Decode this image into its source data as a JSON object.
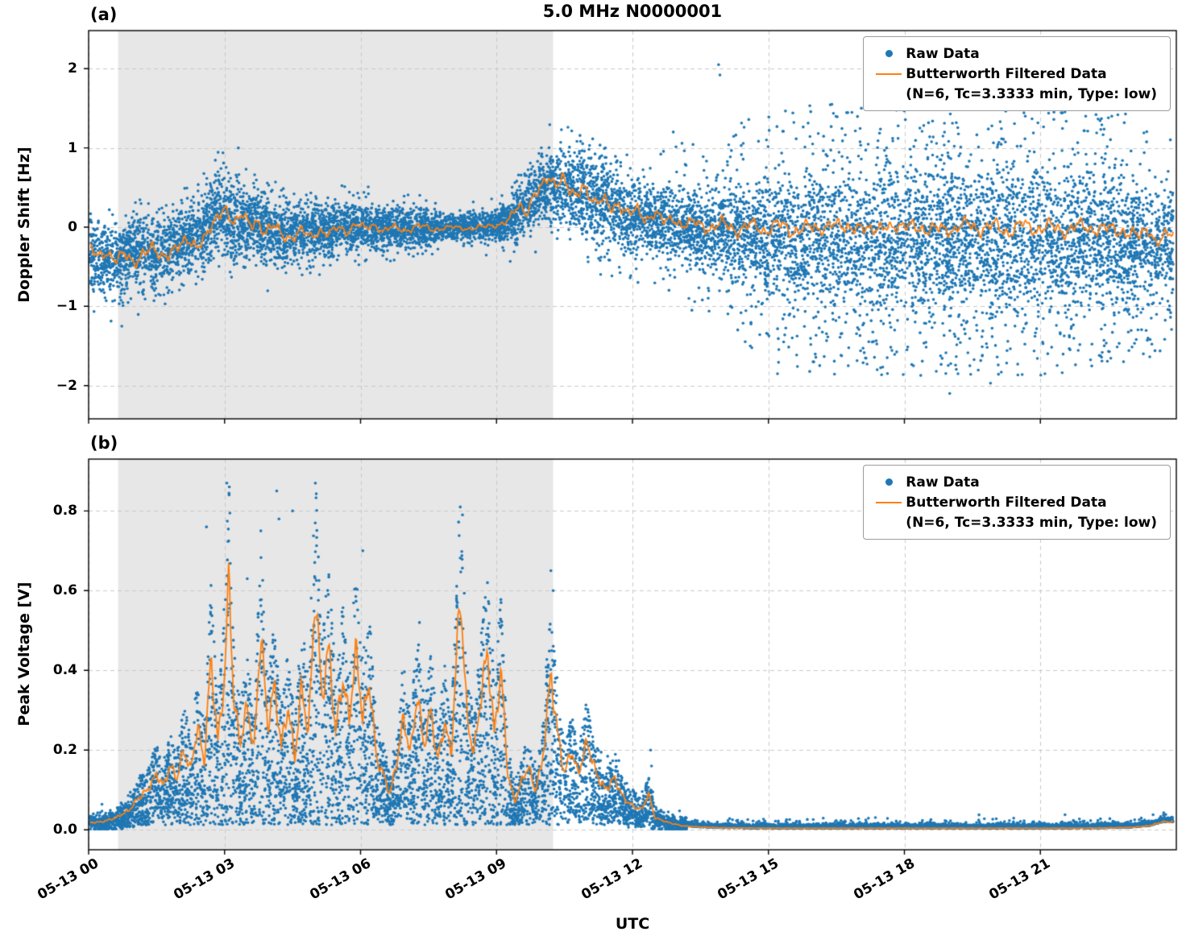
{
  "figure": {
    "title": "5.0 MHz N0000001",
    "xlabel": "UTC"
  },
  "legend": {
    "raw_label": "Raw Data",
    "filtered_label": "Butterworth Filtered Data",
    "filtered_sublabel": "(N=6, Tc=3.3333 min, Type: low)"
  },
  "colors": {
    "raw": "#1f77b4",
    "filtered": "#ff7f0e",
    "shaded_region": "#e7e7e7",
    "grid": "#c9c9c9",
    "spine": "#000000"
  },
  "chart_data": [
    {
      "type": "scatter",
      "panel_label": "(a)",
      "ylabel": "Doppler Shift [Hz]",
      "ylim": [
        -2.42,
        2.48
      ],
      "yticks": [
        -2,
        -1,
        0,
        1,
        2
      ],
      "xlim_hours": [
        0,
        24
      ],
      "xtick_hours": [
        0,
        3,
        6,
        9,
        12,
        15,
        18,
        21
      ],
      "xtick_labels": [
        "05-13 00",
        "05-13 03",
        "05-13 06",
        "05-13 09",
        "05-13 12",
        "05-13 15",
        "05-13 18",
        "05-13 21"
      ],
      "shaded_hours": [
        0.65,
        10.25
      ],
      "grid": "dashed",
      "legend_position": "upper right",
      "series": [
        {
          "name": "Raw Data",
          "type": "scatter",
          "color": "#1f77b4"
        },
        {
          "name": "Butterworth Filtered Data (N=6, Tc=3.3333 min, Type: low)",
          "type": "line",
          "color": "#ff7f0e"
        }
      ],
      "filtered_keyframes": [
        [
          0.0,
          -0.25
        ],
        [
          0.2,
          -0.38
        ],
        [
          0.4,
          -0.3
        ],
        [
          0.6,
          -0.42
        ],
        [
          0.8,
          -0.35
        ],
        [
          1.0,
          -0.45
        ],
        [
          1.2,
          -0.32
        ],
        [
          1.4,
          -0.28
        ],
        [
          1.6,
          -0.38
        ],
        [
          1.8,
          -0.3
        ],
        [
          2.0,
          -0.25
        ],
        [
          2.2,
          -0.18
        ],
        [
          2.4,
          -0.22
        ],
        [
          2.6,
          -0.1
        ],
        [
          2.8,
          0.05
        ],
        [
          3.0,
          0.28
        ],
        [
          3.1,
          0.15
        ],
        [
          3.25,
          0.05
        ],
        [
          3.4,
          0.15
        ],
        [
          3.55,
          0.02
        ],
        [
          3.7,
          0.1
        ],
        [
          3.9,
          -0.08
        ],
        [
          4.1,
          0.02
        ],
        [
          4.3,
          -0.1
        ],
        [
          4.5,
          -0.14
        ],
        [
          4.7,
          -0.05
        ],
        [
          4.9,
          -0.12
        ],
        [
          5.1,
          -0.04
        ],
        [
          5.3,
          -0.1
        ],
        [
          5.5,
          0.0
        ],
        [
          5.7,
          -0.06
        ],
        [
          5.9,
          0.04
        ],
        [
          6.1,
          -0.02
        ],
        [
          6.3,
          0.03
        ],
        [
          6.5,
          -0.05
        ],
        [
          6.7,
          0.0
        ],
        [
          7.0,
          -0.04
        ],
        [
          7.3,
          0.02
        ],
        [
          7.6,
          -0.03
        ],
        [
          8.0,
          0.0
        ],
        [
          8.4,
          -0.02
        ],
        [
          8.8,
          0.01
        ],
        [
          9.1,
          0.04
        ],
        [
          9.3,
          0.1
        ],
        [
          9.5,
          0.28
        ],
        [
          9.65,
          0.18
        ],
        [
          9.8,
          0.38
        ],
        [
          10.0,
          0.5
        ],
        [
          10.15,
          0.62
        ],
        [
          10.3,
          0.55
        ],
        [
          10.45,
          0.65
        ],
        [
          10.6,
          0.45
        ],
        [
          10.75,
          0.35
        ],
        [
          10.9,
          0.55
        ],
        [
          11.05,
          0.42
        ],
        [
          11.2,
          0.28
        ],
        [
          11.35,
          0.35
        ],
        [
          11.5,
          0.25
        ],
        [
          11.7,
          0.3
        ],
        [
          11.9,
          0.15
        ],
        [
          12.1,
          0.22
        ],
        [
          12.3,
          0.1
        ],
        [
          12.5,
          0.18
        ],
        [
          12.7,
          0.06
        ],
        [
          12.9,
          0.12
        ],
        [
          13.1,
          0.02
        ],
        [
          13.4,
          0.06
        ],
        [
          13.7,
          -0.02
        ],
        [
          14.0,
          0.05
        ],
        [
          14.3,
          -0.05
        ],
        [
          14.6,
          0.04
        ],
        [
          14.9,
          -0.06
        ],
        [
          15.2,
          0.06
        ],
        [
          15.5,
          -0.08
        ],
        [
          15.8,
          0.03
        ],
        [
          16.1,
          -0.06
        ],
        [
          16.4,
          0.08
        ],
        [
          16.7,
          -0.05
        ],
        [
          17.0,
          0.04
        ],
        [
          17.3,
          -0.08
        ],
        [
          17.6,
          0.05
        ],
        [
          17.9,
          -0.04
        ],
        [
          18.2,
          0.06
        ],
        [
          18.5,
          -0.08
        ],
        [
          18.8,
          0.02
        ],
        [
          19.1,
          -0.06
        ],
        [
          19.4,
          0.07
        ],
        [
          19.7,
          -0.05
        ],
        [
          20.0,
          0.04
        ],
        [
          20.3,
          -0.08
        ],
        [
          20.6,
          0.05
        ],
        [
          20.9,
          -0.04
        ],
        [
          21.2,
          0.03
        ],
        [
          21.5,
          -0.07
        ],
        [
          21.8,
          0.04
        ],
        [
          22.1,
          -0.05
        ],
        [
          22.4,
          0.02
        ],
        [
          22.7,
          -0.08
        ],
        [
          23.0,
          -0.04
        ],
        [
          23.2,
          -0.12
        ],
        [
          23.4,
          -0.05
        ],
        [
          23.55,
          -0.18
        ],
        [
          23.7,
          -0.1
        ]
      ],
      "raw_envelope": [
        [
          0.0,
          -0.35,
          0.22,
          0.02,
          0.5
        ],
        [
          0.5,
          -0.45,
          0.22,
          0.02,
          0.5
        ],
        [
          1.0,
          -0.3,
          0.23,
          0.02,
          0.5
        ],
        [
          1.5,
          -0.35,
          0.25,
          0.02,
          0.5
        ],
        [
          2.0,
          -0.2,
          0.25,
          0.02,
          0.5
        ],
        [
          2.5,
          -0.1,
          0.22,
          0.02,
          0.5
        ],
        [
          2.9,
          0.2,
          0.25,
          0.03,
          0.5
        ],
        [
          3.2,
          0.05,
          0.25,
          0.03,
          0.5
        ],
        [
          3.6,
          0.05,
          0.24,
          0.02,
          0.4
        ],
        [
          4.0,
          -0.05,
          0.22,
          0.02,
          0.4
        ],
        [
          4.5,
          -0.1,
          0.2,
          0.02,
          0.4
        ],
        [
          5.0,
          -0.05,
          0.18,
          0.02,
          0.4
        ],
        [
          5.5,
          0.0,
          0.16,
          0.02,
          0.35
        ],
        [
          6.0,
          0.02,
          0.15,
          0.02,
          0.35
        ],
        [
          6.5,
          -0.02,
          0.13,
          0.02,
          0.3
        ],
        [
          7.0,
          0.0,
          0.13,
          0.01,
          0.3
        ],
        [
          7.5,
          -0.02,
          0.12,
          0.01,
          0.3
        ],
        [
          8.0,
          0.0,
          0.07,
          0.01,
          0.25
        ],
        [
          8.5,
          0.0,
          0.09,
          0.01,
          0.25
        ],
        [
          9.0,
          0.02,
          0.1,
          0.01,
          0.3
        ],
        [
          9.4,
          0.15,
          0.18,
          0.02,
          0.4
        ],
        [
          9.8,
          0.4,
          0.2,
          0.03,
          0.5
        ],
        [
          10.2,
          0.55,
          0.22,
          0.04,
          0.5
        ],
        [
          10.6,
          0.45,
          0.26,
          0.05,
          0.5
        ],
        [
          11.0,
          0.45,
          0.28,
          0.05,
          0.5
        ],
        [
          11.4,
          0.3,
          0.28,
          0.05,
          0.5
        ],
        [
          11.8,
          0.15,
          0.25,
          0.05,
          0.5
        ],
        [
          12.2,
          0.15,
          0.22,
          0.06,
          0.6
        ],
        [
          12.6,
          0.05,
          0.2,
          0.08,
          0.7
        ],
        [
          13.0,
          0.0,
          0.2,
          0.1,
          0.8
        ],
        [
          13.5,
          -0.02,
          0.22,
          0.12,
          0.9
        ],
        [
          14.0,
          -0.05,
          0.25,
          0.15,
          1.0
        ],
        [
          14.5,
          -0.08,
          0.28,
          0.18,
          1.1
        ],
        [
          15.0,
          -0.1,
          0.32,
          0.22,
          1.2
        ],
        [
          16.0,
          -0.12,
          0.36,
          0.25,
          1.3
        ],
        [
          17.0,
          -0.12,
          0.38,
          0.27,
          1.3
        ],
        [
          18.0,
          -0.15,
          0.38,
          0.27,
          1.3
        ],
        [
          19.0,
          -0.12,
          0.38,
          0.28,
          1.35
        ],
        [
          20.0,
          -0.15,
          0.38,
          0.28,
          1.3
        ],
        [
          21.0,
          -0.12,
          0.38,
          0.27,
          1.3
        ],
        [
          22.0,
          -0.12,
          0.36,
          0.25,
          1.25
        ],
        [
          23.0,
          -0.15,
          0.34,
          0.22,
          1.2
        ],
        [
          23.7,
          -0.2,
          0.3,
          0.18,
          1.0
        ]
      ],
      "raw_outliers": [
        [
          13.9,
          2.05
        ],
        [
          13.93,
          1.92
        ],
        [
          12.9,
          1.2
        ],
        [
          16.4,
          1.55
        ],
        [
          17.05,
          1.5
        ],
        [
          19.3,
          1.55
        ],
        [
          20.6,
          1.5
        ],
        [
          21.3,
          1.45
        ],
        [
          22.0,
          1.4
        ],
        [
          15.2,
          -1.85
        ],
        [
          17.4,
          -1.8
        ],
        [
          19.0,
          -2.1
        ],
        [
          19.9,
          -1.97
        ],
        [
          21.1,
          -1.85
        ],
        [
          18.2,
          -1.75
        ],
        [
          22.3,
          -1.62
        ],
        [
          14.6,
          -1.5
        ],
        [
          16.0,
          -1.7
        ]
      ]
    },
    {
      "type": "scatter",
      "panel_label": "(b)",
      "ylabel": "Peak Voltage [V]",
      "ylim": [
        -0.05,
        0.93
      ],
      "yticks": [
        0.0,
        0.2,
        0.4,
        0.6,
        0.8
      ],
      "xlim_hours": [
        0,
        24
      ],
      "xtick_hours": [
        0,
        3,
        6,
        9,
        12,
        15,
        18,
        21
      ],
      "xtick_labels": [
        "05-13 00",
        "05-13 03",
        "05-13 06",
        "05-13 09",
        "05-13 12",
        "05-13 15",
        "05-13 18",
        "05-13 21"
      ],
      "shaded_hours": [
        0.65,
        10.25
      ],
      "grid": "dashed",
      "legend_position": "upper right",
      "series": [
        {
          "name": "Raw Data",
          "type": "scatter",
          "color": "#1f77b4"
        },
        {
          "name": "Butterworth Filtered Data (N=6, Tc=3.3333 min, Type: low)",
          "type": "line",
          "color": "#ff7f0e"
        }
      ],
      "filtered_keyframes": [
        [
          0.0,
          0.018
        ],
        [
          0.3,
          0.02
        ],
        [
          0.6,
          0.03
        ],
        [
          0.9,
          0.05
        ],
        [
          1.1,
          0.08
        ],
        [
          1.3,
          0.1
        ],
        [
          1.5,
          0.14
        ],
        [
          1.65,
          0.11
        ],
        [
          1.8,
          0.16
        ],
        [
          1.95,
          0.13
        ],
        [
          2.1,
          0.2
        ],
        [
          2.25,
          0.15
        ],
        [
          2.4,
          0.26
        ],
        [
          2.55,
          0.17
        ],
        [
          2.7,
          0.43
        ],
        [
          2.85,
          0.22
        ],
        [
          3.0,
          0.38
        ],
        [
          3.1,
          0.65
        ],
        [
          3.2,
          0.32
        ],
        [
          3.35,
          0.22
        ],
        [
          3.5,
          0.31
        ],
        [
          3.65,
          0.2
        ],
        [
          3.8,
          0.5
        ],
        [
          3.95,
          0.26
        ],
        [
          4.1,
          0.36
        ],
        [
          4.25,
          0.21
        ],
        [
          4.4,
          0.31
        ],
        [
          4.55,
          0.18
        ],
        [
          4.7,
          0.36
        ],
        [
          4.85,
          0.24
        ],
        [
          5.0,
          0.6
        ],
        [
          5.15,
          0.33
        ],
        [
          5.3,
          0.46
        ],
        [
          5.45,
          0.24
        ],
        [
          5.6,
          0.38
        ],
        [
          5.75,
          0.28
        ],
        [
          5.9,
          0.45
        ],
        [
          6.05,
          0.28
        ],
        [
          6.2,
          0.37
        ],
        [
          6.35,
          0.18
        ],
        [
          6.5,
          0.14
        ],
        [
          6.65,
          0.09
        ],
        [
          6.8,
          0.17
        ],
        [
          6.95,
          0.28
        ],
        [
          7.1,
          0.19
        ],
        [
          7.25,
          0.34
        ],
        [
          7.4,
          0.21
        ],
        [
          7.55,
          0.3
        ],
        [
          7.7,
          0.17
        ],
        [
          7.85,
          0.27
        ],
        [
          8.0,
          0.19
        ],
        [
          8.2,
          0.6
        ],
        [
          8.35,
          0.28
        ],
        [
          8.5,
          0.19
        ],
        [
          8.65,
          0.33
        ],
        [
          8.8,
          0.45
        ],
        [
          8.95,
          0.24
        ],
        [
          9.1,
          0.4
        ],
        [
          9.25,
          0.14
        ],
        [
          9.4,
          0.07
        ],
        [
          9.55,
          0.12
        ],
        [
          9.7,
          0.16
        ],
        [
          9.85,
          0.1
        ],
        [
          10.0,
          0.16
        ],
        [
          10.2,
          0.39
        ],
        [
          10.35,
          0.24
        ],
        [
          10.5,
          0.14
        ],
        [
          10.65,
          0.2
        ],
        [
          10.8,
          0.14
        ],
        [
          11.0,
          0.22
        ],
        [
          11.2,
          0.14
        ],
        [
          11.4,
          0.1
        ],
        [
          11.6,
          0.13
        ],
        [
          11.8,
          0.08
        ],
        [
          12.0,
          0.06
        ],
        [
          12.2,
          0.05
        ],
        [
          12.35,
          0.09
        ],
        [
          12.5,
          0.03
        ],
        [
          12.8,
          0.018
        ],
        [
          13.1,
          0.01
        ],
        [
          13.5,
          0.007
        ],
        [
          14.0,
          0.005
        ],
        [
          15.0,
          0.004
        ],
        [
          16.0,
          0.004
        ],
        [
          17.0,
          0.004
        ],
        [
          18.0,
          0.004
        ],
        [
          19.0,
          0.004
        ],
        [
          20.0,
          0.004
        ],
        [
          21.0,
          0.004
        ],
        [
          22.0,
          0.004
        ],
        [
          23.0,
          0.006
        ],
        [
          23.4,
          0.01
        ],
        [
          23.7,
          0.02
        ]
      ],
      "raw_peaks": [
        [
          2.6,
          0.76
        ],
        [
          3.05,
          0.87
        ],
        [
          3.1,
          0.84
        ],
        [
          3.5,
          0.63
        ],
        [
          3.8,
          0.75
        ],
        [
          4.15,
          0.85
        ],
        [
          4.2,
          0.78
        ],
        [
          4.5,
          0.8
        ],
        [
          5.0,
          0.77
        ],
        [
          5.3,
          0.64
        ],
        [
          6.05,
          0.7
        ],
        [
          7.3,
          0.52
        ],
        [
          8.2,
          0.81
        ],
        [
          8.25,
          0.79
        ],
        [
          8.8,
          0.62
        ],
        [
          9.1,
          0.57
        ],
        [
          10.2,
          0.65
        ],
        [
          10.25,
          0.6
        ],
        [
          12.4,
          0.2
        ],
        [
          12.42,
          0.16
        ]
      ]
    }
  ]
}
